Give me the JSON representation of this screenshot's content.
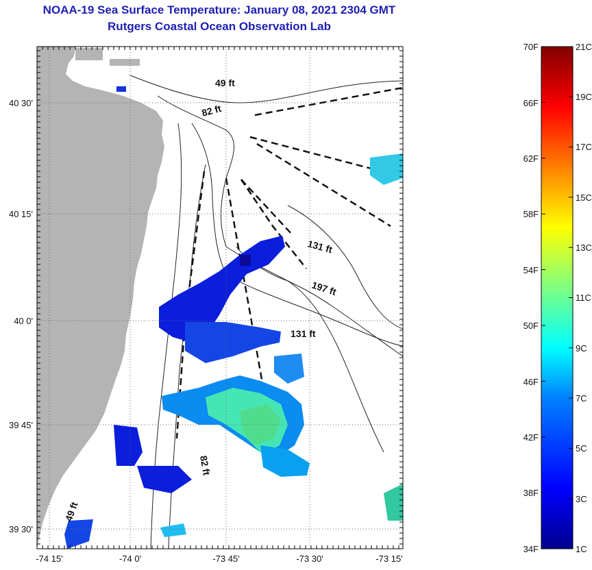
{
  "title": {
    "line1": "NOAA-19 Sea Surface Temperature:  January 08, 2021 2304 GMT",
    "line2": "Rutgers Coastal Ocean Observation Lab"
  },
  "map": {
    "lon_ticks": [
      "-74 15'",
      "-74 0'",
      "-73 45'",
      "-73 30'",
      "-73 15'"
    ],
    "lat_ticks": [
      "40 30'",
      "40 15'",
      "40 0'",
      "39 45'",
      "39 30'"
    ],
    "depth_labels": [
      "49 ft",
      "82 ft",
      "131 ft",
      "197 ft",
      "131 ft",
      "82 ft",
      "49 ft"
    ],
    "land_color": "#b4b4b4",
    "water_color": "#ffffff"
  },
  "colorbar": {
    "fahrenheit": [
      "70F",
      "66F",
      "62F",
      "58F",
      "54F",
      "50F",
      "46F",
      "42F",
      "38F",
      "34F"
    ],
    "celsius": [
      "21C",
      "19C",
      "17C",
      "15C",
      "13C",
      "11C",
      "9C",
      "7C",
      "5C",
      "3C",
      "1C"
    ],
    "colors": [
      "#00008f",
      "#0000ff",
      "#0080ff",
      "#00ffff",
      "#80ff80",
      "#ffff00",
      "#ff8000",
      "#ff0000",
      "#800000"
    ]
  }
}
